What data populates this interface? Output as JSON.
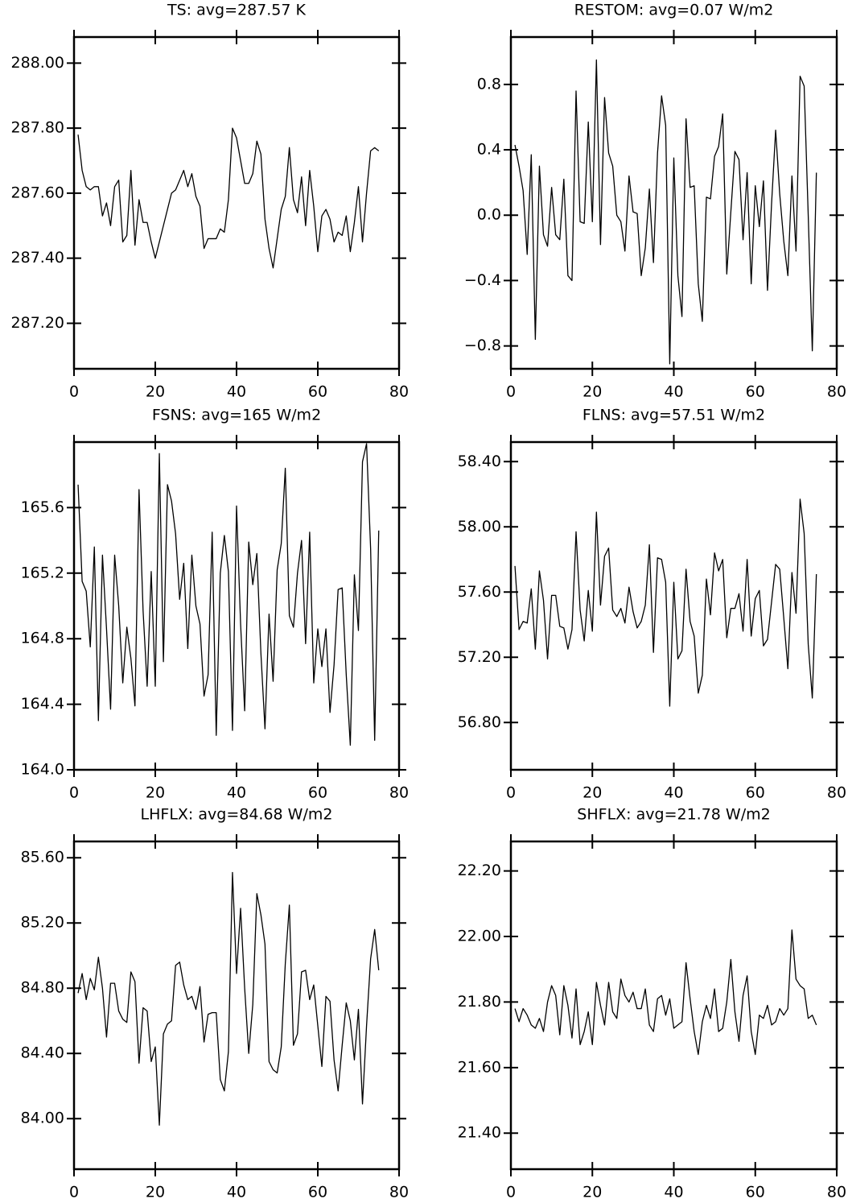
{
  "chart_data": [
    {
      "type": "line",
      "title": "TS: avg=287.57 K",
      "x": [
        1,
        2,
        3,
        4,
        5,
        6,
        7,
        8,
        9,
        10,
        11,
        12,
        13,
        14,
        15,
        16,
        17,
        18,
        19,
        20,
        21,
        22,
        23,
        24,
        25,
        26,
        27,
        28,
        29,
        30,
        31,
        32,
        33,
        34,
        35,
        36,
        37,
        38,
        39,
        40,
        41,
        42,
        43,
        44,
        45,
        46,
        47,
        48,
        49,
        50,
        51,
        52,
        53,
        54,
        55,
        56,
        57,
        58,
        59,
        60,
        61,
        62,
        63,
        64,
        65,
        66,
        67,
        68,
        69,
        70,
        71,
        72,
        73,
        74,
        75
      ],
      "series": [
        {
          "color": "#000000",
          "values": [
            287.78,
            287.67,
            287.62,
            287.61,
            287.62,
            287.62,
            287.53,
            287.57,
            287.5,
            287.62,
            287.64,
            287.45,
            287.47,
            287.67,
            287.44,
            287.58,
            287.51,
            287.51,
            287.45,
            287.4,
            287.45,
            287.5,
            287.55,
            287.6,
            287.61,
            287.64,
            287.67,
            287.62,
            287.66,
            287.59,
            287.56,
            287.43,
            287.46,
            287.46,
            287.46,
            287.49,
            287.48,
            287.58,
            287.8,
            287.77,
            287.7,
            287.63,
            287.63,
            287.66,
            287.76,
            287.72,
            287.52,
            287.43,
            287.37,
            287.46,
            287.55,
            287.59,
            287.74,
            287.58,
            287.54,
            287.65,
            287.5,
            287.67,
            287.56,
            287.42,
            287.53,
            287.55,
            287.52,
            287.45,
            287.48,
            287.47,
            287.53,
            287.42,
            287.51,
            287.62,
            287.45,
            287.6,
            287.73,
            287.74,
            287.73
          ]
        }
      ],
      "xlim": [
        0,
        80
      ],
      "xticks": [
        0,
        20,
        40,
        60,
        80
      ],
      "ylim": [
        287.06,
        288.08
      ],
      "yticks": [
        {
          "value": 287.2,
          "label": "287.20"
        },
        {
          "value": 287.4,
          "label": "287.40"
        },
        {
          "value": 287.6,
          "label": "287.60"
        },
        {
          "value": 287.8,
          "label": "287.80"
        },
        {
          "value": 288,
          "label": "288.00"
        }
      ]
    },
    {
      "type": "line",
      "title": "RESTOM: avg=0.07 W/m2",
      "x": [
        1,
        2,
        3,
        4,
        5,
        6,
        7,
        8,
        9,
        10,
        11,
        12,
        13,
        14,
        15,
        16,
        17,
        18,
        19,
        20,
        21,
        22,
        23,
        24,
        25,
        26,
        27,
        28,
        29,
        30,
        31,
        32,
        33,
        34,
        35,
        36,
        37,
        38,
        39,
        40,
        41,
        42,
        43,
        44,
        45,
        46,
        47,
        48,
        49,
        50,
        51,
        52,
        53,
        54,
        55,
        56,
        57,
        58,
        59,
        60,
        61,
        62,
        63,
        64,
        65,
        66,
        67,
        68,
        69,
        70,
        71,
        72,
        73,
        74,
        75
      ],
      "series": [
        {
          "color": "#000000",
          "values": [
            0.43,
            0.3,
            0.15,
            -0.24,
            0.37,
            -0.76,
            0.3,
            -0.12,
            -0.19,
            0.17,
            -0.12,
            -0.15,
            0.22,
            -0.37,
            -0.4,
            0.76,
            -0.04,
            -0.05,
            0.57,
            -0.04,
            0.95,
            -0.18,
            0.72,
            0.38,
            0.3,
            0.0,
            -0.04,
            -0.22,
            0.24,
            0.02,
            0.01,
            -0.37,
            -0.2,
            0.16,
            -0.29,
            0.38,
            0.73,
            0.55,
            -0.91,
            0.35,
            -0.37,
            -0.62,
            0.59,
            0.17,
            0.18,
            -0.42,
            -0.65,
            0.11,
            0.1,
            0.36,
            0.42,
            0.62,
            -0.36,
            0.02,
            0.39,
            0.34,
            -0.15,
            0.26,
            -0.42,
            0.18,
            -0.07,
            0.21,
            -0.46,
            0.07,
            0.52,
            0.13,
            -0.16,
            -0.37,
            0.24,
            -0.22,
            0.85,
            0.79,
            0.0,
            -0.83,
            0.26
          ]
        }
      ],
      "xlim": [
        0,
        80
      ],
      "xticks": [
        0,
        20,
        40,
        60,
        80
      ],
      "ylim": [
        -0.94,
        1.09
      ],
      "yticks": [
        {
          "value": -0.8,
          "label": "−0.8"
        },
        {
          "value": -0.4,
          "label": "−0.4"
        },
        {
          "value": 0,
          "label": "0.0"
        },
        0.4,
        0.8
      ]
    },
    {
      "type": "line",
      "title": "FSNS: avg=165 W/m2",
      "x": [
        1,
        2,
        3,
        4,
        5,
        6,
        7,
        8,
        9,
        10,
        11,
        12,
        13,
        14,
        15,
        16,
        17,
        18,
        19,
        20,
        21,
        22,
        23,
        24,
        25,
        26,
        27,
        28,
        29,
        30,
        31,
        32,
        33,
        34,
        35,
        36,
        37,
        38,
        39,
        40,
        41,
        42,
        43,
        44,
        45,
        46,
        47,
        48,
        49,
        50,
        51,
        52,
        53,
        54,
        55,
        56,
        57,
        58,
        59,
        60,
        61,
        62,
        63,
        64,
        65,
        66,
        67,
        68,
        69,
        70,
        71,
        72,
        73,
        74,
        75
      ],
      "series": [
        {
          "color": "#000000",
          "values": [
            165.74,
            165.15,
            165.09,
            164.75,
            165.36,
            164.3,
            165.31,
            164.86,
            164.37,
            165.31,
            165.0,
            164.53,
            164.87,
            164.68,
            164.39,
            165.71,
            164.97,
            164.51,
            165.21,
            164.51,
            165.93,
            164.66,
            165.74,
            165.64,
            165.44,
            165.04,
            165.26,
            164.74,
            165.31,
            165.0,
            164.89,
            164.45,
            164.58,
            165.45,
            164.21,
            165.2,
            165.43,
            165.21,
            164.24,
            165.61,
            164.89,
            164.36,
            165.39,
            165.13,
            165.32,
            164.71,
            164.25,
            164.95,
            164.54,
            165.22,
            165.38,
            165.84,
            164.94,
            164.87,
            165.2,
            165.4,
            164.77,
            165.45,
            164.53,
            164.86,
            164.63,
            164.86,
            164.35,
            164.64,
            165.1,
            165.11,
            164.58,
            164.15,
            165.19,
            164.85,
            165.88,
            165.99,
            165.35,
            164.18,
            165.46
          ]
        }
      ],
      "xlim": [
        0,
        80
      ],
      "xticks": [
        0,
        20,
        40,
        60,
        80
      ],
      "ylim": [
        164.0,
        166.0
      ],
      "yticks": [
        {
          "value": 164,
          "label": "164.0"
        },
        164.4,
        164.8,
        165.2,
        165.6
      ]
    },
    {
      "type": "line",
      "title": "FLNS: avg=57.51 W/m2",
      "x": [
        1,
        2,
        3,
        4,
        5,
        6,
        7,
        8,
        9,
        10,
        11,
        12,
        13,
        14,
        15,
        16,
        17,
        18,
        19,
        20,
        21,
        22,
        23,
        24,
        25,
        26,
        27,
        28,
        29,
        30,
        31,
        32,
        33,
        34,
        35,
        36,
        37,
        38,
        39,
        40,
        41,
        42,
        43,
        44,
        45,
        46,
        47,
        48,
        49,
        50,
        51,
        52,
        53,
        54,
        55,
        56,
        57,
        58,
        59,
        60,
        61,
        62,
        63,
        64,
        65,
        66,
        67,
        68,
        69,
        70,
        71,
        72,
        73,
        74,
        75
      ],
      "series": [
        {
          "color": "#000000",
          "values": [
            57.76,
            57.37,
            57.42,
            57.41,
            57.62,
            57.25,
            57.73,
            57.55,
            57.19,
            57.58,
            57.58,
            57.39,
            57.38,
            57.25,
            57.37,
            57.97,
            57.49,
            57.3,
            57.61,
            57.36,
            58.09,
            57.52,
            57.82,
            57.87,
            57.49,
            57.45,
            57.5,
            57.41,
            57.63,
            57.48,
            57.38,
            57.42,
            57.52,
            57.89,
            57.23,
            57.81,
            57.8,
            57.66,
            56.9,
            57.66,
            57.19,
            57.24,
            57.74,
            57.42,
            57.33,
            56.98,
            57.09,
            57.68,
            57.46,
            57.84,
            57.73,
            57.8,
            57.32,
            57.5,
            57.5,
            57.59,
            57.36,
            57.8,
            57.33,
            57.56,
            57.61,
            57.27,
            57.31,
            57.54,
            57.77,
            57.74,
            57.44,
            57.13,
            57.72,
            57.47,
            58.17,
            57.96,
            57.28,
            56.95,
            57.71
          ]
        }
      ],
      "xlim": [
        0,
        80
      ],
      "xticks": [
        0,
        20,
        40,
        60,
        80
      ],
      "ylim": [
        56.51,
        58.52
      ],
      "yticks": [
        {
          "value": 56.8,
          "label": "56.80"
        },
        {
          "value": 57.2,
          "label": "57.20"
        },
        {
          "value": 57.6,
          "label": "57.60"
        },
        {
          "value": 58,
          "label": "58.00"
        },
        {
          "value": 58.4,
          "label": "58.40"
        }
      ]
    },
    {
      "type": "line",
      "title": "LHFLX: avg=84.68 W/m2",
      "x": [
        1,
        2,
        3,
        4,
        5,
        6,
        7,
        8,
        9,
        10,
        11,
        12,
        13,
        14,
        15,
        16,
        17,
        18,
        19,
        20,
        21,
        22,
        23,
        24,
        25,
        26,
        27,
        28,
        29,
        30,
        31,
        32,
        33,
        34,
        35,
        36,
        37,
        38,
        39,
        40,
        41,
        42,
        43,
        44,
        45,
        46,
        47,
        48,
        49,
        50,
        51,
        52,
        53,
        54,
        55,
        56,
        57,
        58,
        59,
        60,
        61,
        62,
        63,
        64,
        65,
        66,
        67,
        68,
        69,
        70,
        71,
        72,
        73,
        74,
        75
      ],
      "series": [
        {
          "color": "#000000",
          "values": [
            84.77,
            84.89,
            84.73,
            84.86,
            84.79,
            84.99,
            84.8,
            84.5,
            84.83,
            84.83,
            84.66,
            84.61,
            84.59,
            84.9,
            84.84,
            84.34,
            84.68,
            84.66,
            84.35,
            84.44,
            83.96,
            84.52,
            84.58,
            84.6,
            84.94,
            84.96,
            84.82,
            84.73,
            84.75,
            84.67,
            84.81,
            84.47,
            84.64,
            84.65,
            84.65,
            84.24,
            84.17,
            84.41,
            85.51,
            84.89,
            85.29,
            84.8,
            84.4,
            84.7,
            85.38,
            85.25,
            85.07,
            84.35,
            84.3,
            84.28,
            84.44,
            84.95,
            85.31,
            84.45,
            84.52,
            84.9,
            84.91,
            84.73,
            84.82,
            84.57,
            84.32,
            84.75,
            84.72,
            84.36,
            84.17,
            84.45,
            84.71,
            84.6,
            84.36,
            84.67,
            84.09,
            84.57,
            84.98,
            85.16,
            84.91
          ]
        }
      ],
      "xlim": [
        0,
        80
      ],
      "xticks": [
        0,
        20,
        40,
        60,
        80
      ],
      "ylim": [
        83.69,
        85.7
      ],
      "yticks": [
        {
          "value": 84,
          "label": "84.00"
        },
        {
          "value": 84.4,
          "label": "84.40"
        },
        {
          "value": 84.8,
          "label": "84.80"
        },
        {
          "value": 85.2,
          "label": "85.20"
        },
        {
          "value": 85.6,
          "label": "85.60"
        }
      ]
    },
    {
      "type": "line",
      "title": "SHFLX: avg=21.78 W/m2",
      "x": [
        1,
        2,
        3,
        4,
        5,
        6,
        7,
        8,
        9,
        10,
        11,
        12,
        13,
        14,
        15,
        16,
        17,
        18,
        19,
        20,
        21,
        22,
        23,
        24,
        25,
        26,
        27,
        28,
        29,
        30,
        31,
        32,
        33,
        34,
        35,
        36,
        37,
        38,
        39,
        40,
        41,
        42,
        43,
        44,
        45,
        46,
        47,
        48,
        49,
        50,
        51,
        52,
        53,
        54,
        55,
        56,
        57,
        58,
        59,
        60,
        61,
        62,
        63,
        64,
        65,
        66,
        67,
        68,
        69,
        70,
        71,
        72,
        73,
        74,
        75
      ],
      "series": [
        {
          "color": "#000000",
          "values": [
            21.78,
            21.74,
            21.78,
            21.76,
            21.73,
            21.72,
            21.75,
            21.71,
            21.8,
            21.85,
            21.82,
            21.7,
            21.85,
            21.79,
            21.69,
            21.84,
            21.67,
            21.71,
            21.77,
            21.67,
            21.86,
            21.79,
            21.73,
            21.86,
            21.77,
            21.75,
            21.87,
            21.82,
            21.8,
            21.83,
            21.78,
            21.78,
            21.84,
            21.73,
            21.71,
            21.81,
            21.82,
            21.76,
            21.81,
            21.72,
            21.73,
            21.74,
            21.92,
            21.81,
            21.71,
            21.64,
            21.74,
            21.79,
            21.75,
            21.84,
            21.71,
            21.72,
            21.8,
            21.93,
            21.77,
            21.68,
            21.82,
            21.88,
            21.71,
            21.64,
            21.76,
            21.75,
            21.79,
            21.73,
            21.74,
            21.78,
            21.76,
            21.78,
            22.02,
            21.87,
            21.85,
            21.84,
            21.75,
            21.76,
            21.73
          ]
        }
      ],
      "xlim": [
        0,
        80
      ],
      "xticks": [
        0,
        20,
        40,
        60,
        80
      ],
      "ylim": [
        21.29,
        22.29
      ],
      "yticks": [
        {
          "value": 21.4,
          "label": "21.40"
        },
        {
          "value": 21.6,
          "label": "21.60"
        },
        {
          "value": 21.8,
          "label": "21.80"
        },
        {
          "value": 22,
          "label": "22.00"
        },
        {
          "value": 22.2,
          "label": "22.20"
        }
      ]
    }
  ]
}
